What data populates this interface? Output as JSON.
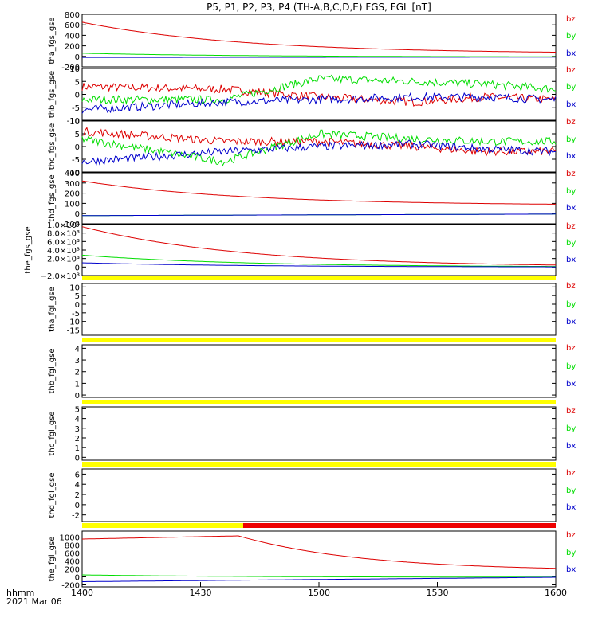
{
  "title": "P5, P1, P2, P3, P4 (TH-A,B,C,D,E) FGS, FGL [nT]",
  "colors": {
    "bz": "#dd0000",
    "by": "#00dd00",
    "bx": "#0000cc",
    "bar_yellow": "#ffff00",
    "bar_red": "#ee0000"
  },
  "footer": {
    "axis_unit": "hhmm",
    "date": "2021 Mar 06"
  },
  "chart_data": {
    "type": "line",
    "x_tick_labels": [
      "1400",
      "1430",
      "1500",
      "1530",
      "1600"
    ],
    "xlim": [
      "14:00",
      "16:00"
    ],
    "legend": [
      "bz",
      "by",
      "bx"
    ],
    "panels": [
      {
        "ylabel": "tha_fgs_gse",
        "ylim": [
          -200,
          800
        ],
        "yticks": [
          "800",
          "600",
          "400",
          "200",
          "0",
          "-200"
        ],
        "series": [
          {
            "name": "bz",
            "kind": "decay",
            "start": 650,
            "end": 50
          },
          {
            "name": "by",
            "kind": "decay",
            "start": 60,
            "end": -10
          },
          {
            "name": "bx",
            "kind": "flat",
            "start": -20,
            "end": -15
          }
        ]
      },
      {
        "ylabel": "thb_fgs_gse",
        "ylim": [
          -10,
          10
        ],
        "yticks": [
          "10",
          "5",
          "0",
          "-5",
          "-10"
        ],
        "series": [
          {
            "name": "bz",
            "kind": "noise",
            "levels": [
              [
                0,
                3
              ],
              [
                0.3,
                2
              ],
              [
                0.5,
                -1
              ],
              [
                0.7,
                -3
              ],
              [
                0.85,
                -1
              ],
              [
                1,
                -2
              ]
            ]
          },
          {
            "name": "by",
            "kind": "noise",
            "levels": [
              [
                0,
                -2
              ],
              [
                0.3,
                -2
              ],
              [
                0.5,
                6
              ],
              [
                0.7,
                5
              ],
              [
                0.85,
                4
              ],
              [
                1,
                2
              ]
            ]
          },
          {
            "name": "bx",
            "kind": "noise",
            "levels": [
              [
                0,
                -6
              ],
              [
                0.3,
                -3
              ],
              [
                0.5,
                -2
              ],
              [
                0.7,
                -1
              ],
              [
                0.85,
                -1
              ],
              [
                1,
                -2
              ]
            ]
          }
        ]
      },
      {
        "ylabel": "thc_fgs_gse",
        "ylim": [
          -10,
          10
        ],
        "yticks": [
          "10",
          "5",
          "0",
          "-5",
          "-10"
        ],
        "series": [
          {
            "name": "bz",
            "kind": "noise",
            "levels": [
              [
                0,
                6
              ],
              [
                0.3,
                2
              ],
              [
                0.5,
                2
              ],
              [
                0.7,
                0
              ],
              [
                0.85,
                -2
              ],
              [
                1,
                -2
              ]
            ]
          },
          {
            "name": "by",
            "kind": "noise",
            "levels": [
              [
                0,
                3
              ],
              [
                0.3,
                -6
              ],
              [
                0.5,
                5
              ],
              [
                0.7,
                3
              ],
              [
                0.85,
                2
              ],
              [
                1,
                2
              ]
            ]
          },
          {
            "name": "bx",
            "kind": "noise",
            "levels": [
              [
                0,
                -6
              ],
              [
                0.3,
                -2
              ],
              [
                0.5,
                0
              ],
              [
                0.7,
                1
              ],
              [
                0.85,
                -1
              ],
              [
                1,
                -2
              ]
            ]
          }
        ]
      },
      {
        "ylabel": "thd_fgs_gse",
        "ylim": [
          -100,
          400
        ],
        "yticks": [
          "400",
          "300",
          "200",
          "100",
          "0",
          "-100"
        ],
        "series": [
          {
            "name": "bz",
            "kind": "decay",
            "start": 320,
            "end": 80
          },
          {
            "name": "by",
            "kind": "flat",
            "start": -20,
            "end": -5
          },
          {
            "name": "bx",
            "kind": "flat",
            "start": -20,
            "end": -5
          }
        ]
      },
      {
        "ylabel": "the_fgs_gse",
        "ylim": [
          -2000,
          10000
        ],
        "yticks": [
          "1.0×10⁴",
          "8.0×10³",
          "6.0×10³",
          "4.0×10³",
          "2.0×10³",
          "0",
          "−2.0×10³"
        ],
        "series": [
          {
            "name": "bz",
            "kind": "decay",
            "start": 9500,
            "end": 0
          },
          {
            "name": "by",
            "kind": "decay",
            "start": 2800,
            "end": 0
          },
          {
            "name": "bx",
            "kind": "decay",
            "start": 1000,
            "end": 0
          }
        ]
      },
      {
        "ylabel": "tha_fgl_gse",
        "ylim": [
          -18,
          12
        ],
        "yticks": [
          "10",
          "5",
          "0",
          "-5",
          "-10",
          "-15"
        ],
        "series": []
      },
      {
        "ylabel": "thb_fgl_gse",
        "ylim": [
          -0.2,
          4.3
        ],
        "yticks": [
          "4",
          "3",
          "2",
          "1",
          "0"
        ],
        "series": []
      },
      {
        "ylabel": "thc_fgl_gse",
        "ylim": [
          -0.3,
          5.2
        ],
        "yticks": [
          "5",
          "4",
          "3",
          "2",
          "1",
          "0"
        ],
        "series": []
      },
      {
        "ylabel": "thd_fgl_gse",
        "ylim": [
          -3.3,
          7
        ],
        "yticks": [
          "6",
          "4",
          "2",
          "0",
          "-2"
        ],
        "series": []
      },
      {
        "ylabel": "the_fgl_gse",
        "ylim": [
          -250,
          1150
        ],
        "yticks": [
          "1000",
          "800",
          "600",
          "400",
          "200",
          "0",
          "-200"
        ],
        "series": [
          {
            "name": "bz",
            "kind": "peakdecay",
            "start": 950,
            "peak": 1030,
            "peak_at": 0.33,
            "end": 150
          },
          {
            "name": "by",
            "kind": "decay",
            "start": 50,
            "end": -10
          },
          {
            "name": "bx",
            "kind": "flat",
            "start": -120,
            "end": -10
          }
        ]
      }
    ],
    "status_bars": [
      {
        "after_panel": 4,
        "segments": [
          {
            "color": "bar_yellow",
            "to": 1.0
          }
        ]
      },
      {
        "after_panel": 5,
        "segments": [
          {
            "color": "bar_yellow",
            "to": 1.0
          }
        ]
      },
      {
        "after_panel": 6,
        "segments": [
          {
            "color": "bar_yellow",
            "to": 1.0
          }
        ]
      },
      {
        "after_panel": 7,
        "segments": [
          {
            "color": "bar_yellow",
            "to": 1.0
          }
        ]
      },
      {
        "after_panel": 8,
        "segments": [
          {
            "color": "bar_yellow",
            "to": 0.34
          },
          {
            "color": "bar_red",
            "to": 1.0
          }
        ]
      }
    ]
  }
}
